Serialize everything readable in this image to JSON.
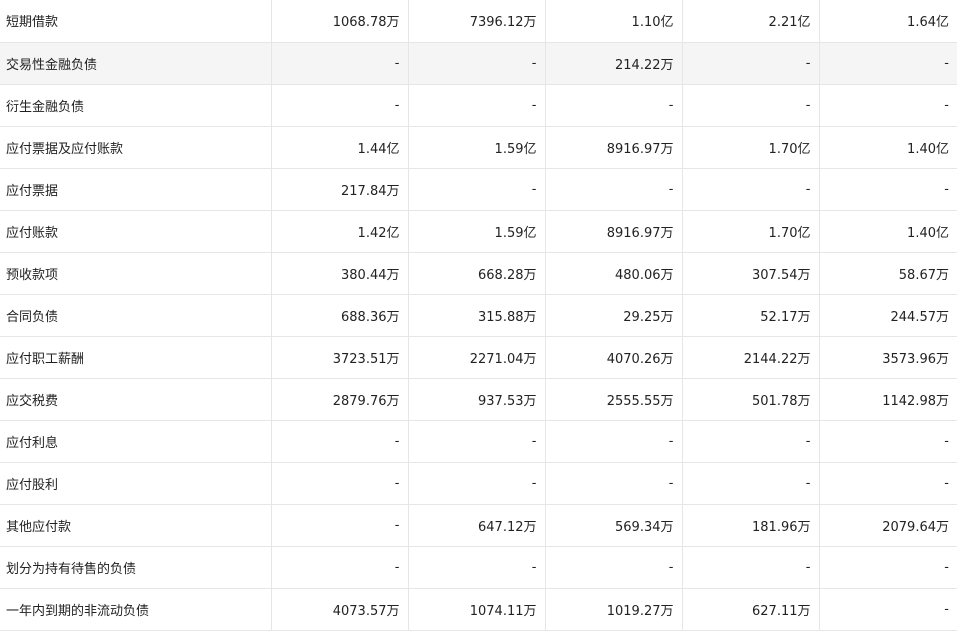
{
  "columns_count": 5,
  "rows": [
    {
      "label": "短期借款",
      "values": [
        "1068.78万",
        "7396.12万",
        "1.10亿",
        "2.21亿",
        "1.64亿"
      ]
    },
    {
      "label": "交易性金融负债",
      "values": [
        "-",
        "-",
        "214.22万",
        "-",
        "-"
      ]
    },
    {
      "label": "衍生金融负债",
      "values": [
        "-",
        "-",
        "-",
        "-",
        "-"
      ]
    },
    {
      "label": "应付票据及应付账款",
      "values": [
        "1.44亿",
        "1.59亿",
        "8916.97万",
        "1.70亿",
        "1.40亿"
      ]
    },
    {
      "label": "应付票据",
      "values": [
        "217.84万",
        "-",
        "-",
        "-",
        "-"
      ]
    },
    {
      "label": "应付账款",
      "values": [
        "1.42亿",
        "1.59亿",
        "8916.97万",
        "1.70亿",
        "1.40亿"
      ]
    },
    {
      "label": "预收款项",
      "values": [
        "380.44万",
        "668.28万",
        "480.06万",
        "307.54万",
        "58.67万"
      ]
    },
    {
      "label": "合同负债",
      "values": [
        "688.36万",
        "315.88万",
        "29.25万",
        "52.17万",
        "244.57万"
      ]
    },
    {
      "label": "应付职工薪酬",
      "values": [
        "3723.51万",
        "2271.04万",
        "4070.26万",
        "2144.22万",
        "3573.96万"
      ]
    },
    {
      "label": "应交税费",
      "values": [
        "2879.76万",
        "937.53万",
        "2555.55万",
        "501.78万",
        "1142.98万"
      ]
    },
    {
      "label": "应付利息",
      "values": [
        "-",
        "-",
        "-",
        "-",
        "-"
      ]
    },
    {
      "label": "应付股利",
      "values": [
        "-",
        "-",
        "-",
        "-",
        "-"
      ]
    },
    {
      "label": "其他应付款",
      "values": [
        "-",
        "647.12万",
        "569.34万",
        "181.96万",
        "2079.64万"
      ]
    },
    {
      "label": "划分为持有待售的负债",
      "values": [
        "-",
        "-",
        "-",
        "-",
        "-"
      ]
    },
    {
      "label": "一年内到期的非流动负债",
      "values": [
        "4073.57万",
        "1074.11万",
        "1019.27万",
        "627.11万",
        "-"
      ]
    }
  ],
  "colors": {
    "alt_row_background": "#f5f5f5",
    "border": "#e6e6e6",
    "text": "#222222"
  }
}
